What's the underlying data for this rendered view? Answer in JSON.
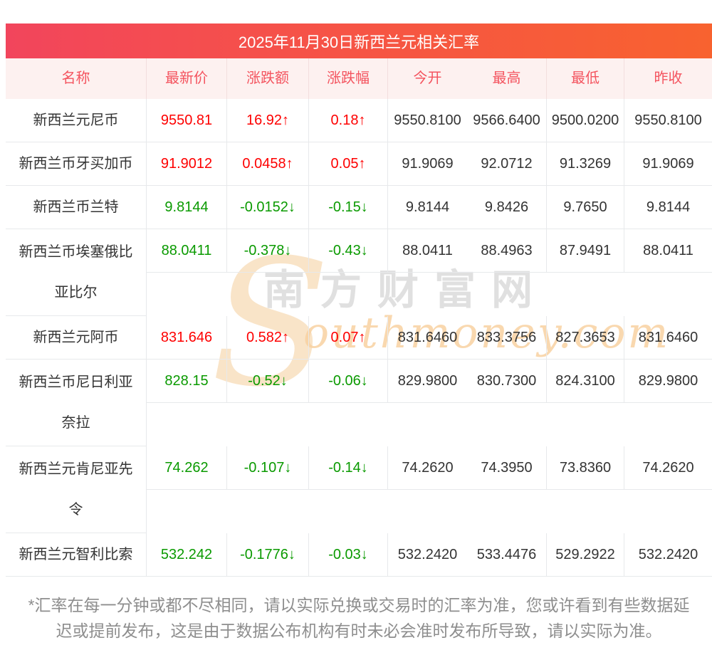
{
  "banner": {
    "title": "2025年11月30日新西兰元相关汇率"
  },
  "table": {
    "columns": [
      "名称",
      "最新价",
      "涨跌额",
      "涨跌幅",
      "今开",
      "最高",
      "最低",
      "昨收"
    ],
    "rows": [
      {
        "name": "新西兰元尼币",
        "latest": "9550.81",
        "change": "16.92↑",
        "pct": "0.18↑",
        "open": "9550.8100",
        "high": "9566.6400",
        "low": "9500.0200",
        "prev": "9550.8100",
        "trend": "up"
      },
      {
        "name": "新西兰币牙买加币",
        "latest": "91.9012",
        "change": "0.0458↑",
        "pct": "0.05↑",
        "open": "91.9069",
        "high": "92.0712",
        "low": "91.3269",
        "prev": "91.9069",
        "trend": "up"
      },
      {
        "name": "新西兰币兰特",
        "latest": "9.8144",
        "change": "-0.0152↓",
        "pct": "-0.15↓",
        "open": "9.8144",
        "high": "9.8426",
        "low": "9.7650",
        "prev": "9.8144",
        "trend": "down"
      },
      {
        "name": "新西兰币埃塞俄比\n亚比尔",
        "latest": "88.0411",
        "change": "-0.378↓",
        "pct": "-0.43↓",
        "open": "88.0411",
        "high": "88.4963",
        "low": "87.9491",
        "prev": "88.0411",
        "trend": "down"
      },
      {
        "name": "新西兰元阿币",
        "latest": "831.646",
        "change": "0.582↑",
        "pct": "0.07↑",
        "open": "831.6460",
        "high": "833.3756",
        "low": "827.3653",
        "prev": "831.6460",
        "trend": "up"
      },
      {
        "name": "新西兰币尼日利亚\n奈拉",
        "latest": "828.15",
        "change": "-0.52↓",
        "pct": "-0.06↓",
        "open": "829.9800",
        "high": "830.7300",
        "low": "824.3100",
        "prev": "829.9800",
        "trend": "down"
      },
      {
        "name": "新西兰元肯尼亚先\n令",
        "latest": "74.262",
        "change": "-0.107↓",
        "pct": "-0.14↓",
        "open": "74.2620",
        "high": "74.3950",
        "low": "73.8360",
        "prev": "74.2620",
        "trend": "down"
      },
      {
        "name": "新西兰元智利比索",
        "latest": "532.242",
        "change": "-0.1776↓",
        "pct": "-0.03↓",
        "open": "532.2420",
        "high": "533.4476",
        "low": "529.2922",
        "prev": "532.2420",
        "trend": "down"
      }
    ]
  },
  "watermark": {
    "initial": "S",
    "site_cn": "南方财富网",
    "site_en": "outhmoney.com"
  },
  "footer": {
    "note": "*汇率在每一分钟或都不尽相同，请以实际兑换或交易时的汇率为准，您或许看到有些数据延\n迟或提前发布，这是由于数据公布机构有时未必会准时发布所导致，请以实际为准。"
  },
  "colors": {
    "up": "#fe0000",
    "down": "#0a9a00",
    "banner_gradient_left": "#f2455c",
    "banner_gradient_right": "#f8622f",
    "header_bg": "#fdf1f0",
    "header_text": "#f4545f",
    "border": "#e7e9eb",
    "text": "#333333",
    "footer_text": "#8e8e8e",
    "watermark_gray": "#e0e0e0",
    "watermark_orange": "#f8d2a2",
    "watermark_cream": "#f9e4c8"
  }
}
